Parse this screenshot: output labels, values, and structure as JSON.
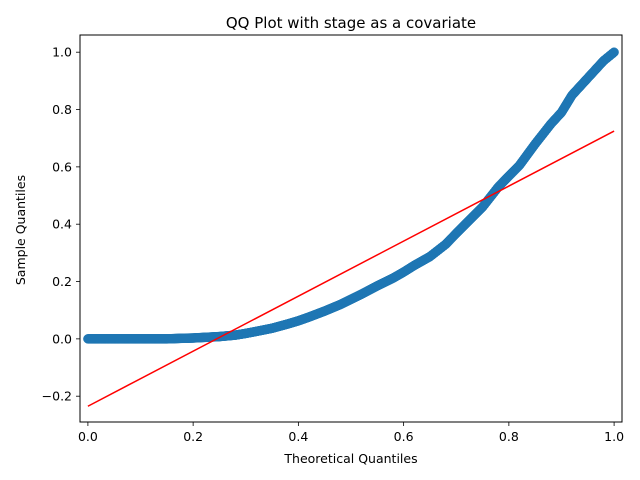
{
  "chart_data": {
    "type": "scatter",
    "title": "QQ Plot with stage as a covariate",
    "xlabel": "Theoretical Quantiles",
    "ylabel": "Sample Quantiles",
    "xlim": [
      -0.015,
      1.015
    ],
    "ylim": [
      -0.29,
      1.06
    ],
    "xticks": [
      0.0,
      0.2,
      0.4,
      0.6,
      0.8,
      1.0
    ],
    "xtick_labels": [
      "0.0",
      "0.2",
      "0.4",
      "0.6",
      "0.8",
      "1.0"
    ],
    "yticks": [
      -0.2,
      0.0,
      0.2,
      0.4,
      0.6,
      0.8,
      1.0
    ],
    "ytick_labels": [
      "−0.2",
      "0.0",
      "0.2",
      "0.4",
      "0.6",
      "0.8",
      "1.0"
    ],
    "grid": false,
    "legend": "none",
    "series": [
      {
        "kind": "scatter",
        "color": "#1f77b4",
        "points": [
          [
            0.0,
            0.0
          ],
          [
            0.05,
            0.0
          ],
          [
            0.1,
            0.0
          ],
          [
            0.15,
            0.0
          ],
          [
            0.18,
            0.002
          ],
          [
            0.2,
            0.003
          ],
          [
            0.22,
            0.005
          ],
          [
            0.25,
            0.008
          ],
          [
            0.28,
            0.013
          ],
          [
            0.3,
            0.019
          ],
          [
            0.32,
            0.026
          ],
          [
            0.35,
            0.037
          ],
          [
            0.38,
            0.052
          ],
          [
            0.4,
            0.063
          ],
          [
            0.42,
            0.076
          ],
          [
            0.45,
            0.097
          ],
          [
            0.48,
            0.12
          ],
          [
            0.5,
            0.138
          ],
          [
            0.52,
            0.156
          ],
          [
            0.55,
            0.185
          ],
          [
            0.58,
            0.212
          ],
          [
            0.6,
            0.233
          ],
          [
            0.62,
            0.256
          ],
          [
            0.65,
            0.287
          ],
          [
            0.68,
            0.33
          ],
          [
            0.7,
            0.368
          ],
          [
            0.72,
            0.405
          ],
          [
            0.75,
            0.46
          ],
          [
            0.78,
            0.53
          ],
          [
            0.8,
            0.568
          ],
          [
            0.82,
            0.605
          ],
          [
            0.85,
            0.68
          ],
          [
            0.88,
            0.75
          ],
          [
            0.9,
            0.79
          ],
          [
            0.92,
            0.85
          ],
          [
            0.95,
            0.91
          ],
          [
            0.98,
            0.97
          ],
          [
            1.0,
            1.0
          ]
        ]
      },
      {
        "kind": "line",
        "color": "#ff0000",
        "points": [
          [
            0.0,
            -0.235
          ],
          [
            1.0,
            0.725
          ]
        ]
      }
    ]
  }
}
